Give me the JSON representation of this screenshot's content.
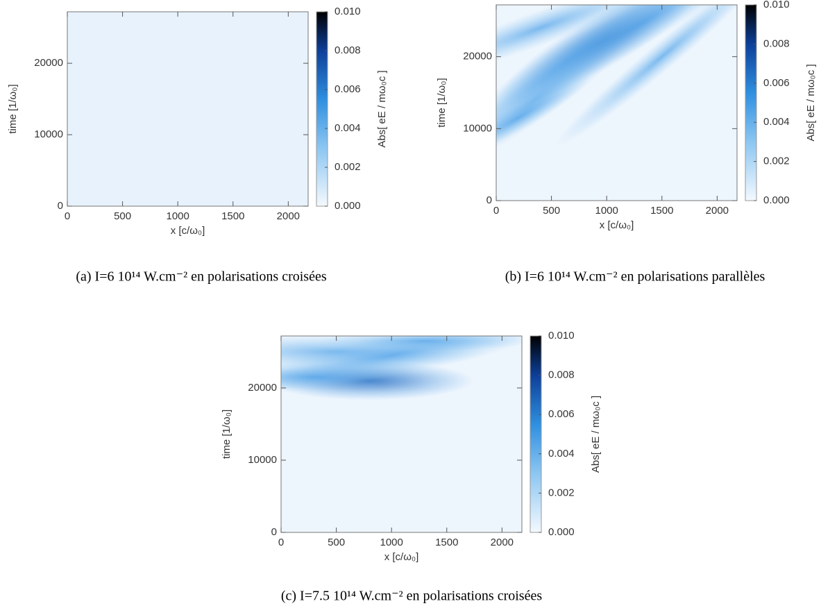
{
  "chart_data": [
    {
      "type": "heatmap",
      "caption": "(a) I=6 10¹⁴ W.cm⁻² en polarisations croisées",
      "xlabel": "x [c/ω₀]",
      "ylabel": "time [1/ω₀]",
      "colorbar_label": "Abs[ eE / mω₀c ]",
      "xlim": [
        0,
        2180
      ],
      "ylim": [
        0,
        27200
      ],
      "xticks": [
        0,
        500,
        1000,
        1500,
        2000
      ],
      "yticks": [
        0,
        10000,
        20000
      ],
      "clim": [
        0,
        0.01
      ],
      "cticks": [
        {
          "value": 0,
          "label": "0.000"
        },
        {
          "value": 0.002,
          "label": "0.002"
        },
        {
          "value": 0.004,
          "label": "0.004"
        },
        {
          "value": 0.006,
          "label": "0.006"
        },
        {
          "value": 0.008,
          "label": "0.008"
        },
        {
          "value": 0.01,
          "label": "0.010"
        }
      ]
    },
    {
      "type": "heatmap",
      "caption": "(b) I=6 10¹⁴ W.cm⁻² en polarisations parallèles",
      "xlabel": "x [c/ω₀]",
      "ylabel": "time [1/ω₀]",
      "colorbar_label": "Abs[ eE / mω₀c ]",
      "xlim": [
        0,
        2180
      ],
      "ylim": [
        0,
        27200
      ],
      "xticks": [
        0,
        500,
        1000,
        1500,
        2000
      ],
      "yticks": [
        0,
        10000,
        20000
      ],
      "clim": [
        0,
        0.01
      ],
      "cticks": [
        {
          "value": 0,
          "label": "0.000"
        },
        {
          "value": 0.002,
          "label": "0.002"
        },
        {
          "value": 0.004,
          "label": "0.004"
        },
        {
          "value": 0.006,
          "label": "0.006"
        },
        {
          "value": 0.008,
          "label": "0.008"
        },
        {
          "value": 0.01,
          "label": "0.010"
        }
      ]
    },
    {
      "type": "heatmap",
      "caption": "(c) I=7.5 10¹⁴ W.cm⁻² en polarisations croisées",
      "xlabel": "x [c/ω₀]",
      "ylabel": "time [1/ω₀]",
      "colorbar_label": "Abs[ eE / mω₀c ]",
      "xlim": [
        0,
        2180
      ],
      "ylim": [
        0,
        27200
      ],
      "xticks": [
        0,
        500,
        1000,
        1500,
        2000
      ],
      "yticks": [
        0,
        10000,
        20000
      ],
      "clim": [
        0,
        0.01
      ],
      "cticks": [
        {
          "value": 0,
          "label": "0.000"
        },
        {
          "value": 0.002,
          "label": "0.002"
        },
        {
          "value": 0.004,
          "label": "0.004"
        },
        {
          "value": 0.006,
          "label": "0.006"
        },
        {
          "value": 0.008,
          "label": "0.008"
        },
        {
          "value": 0.01,
          "label": "0.010"
        }
      ]
    }
  ]
}
